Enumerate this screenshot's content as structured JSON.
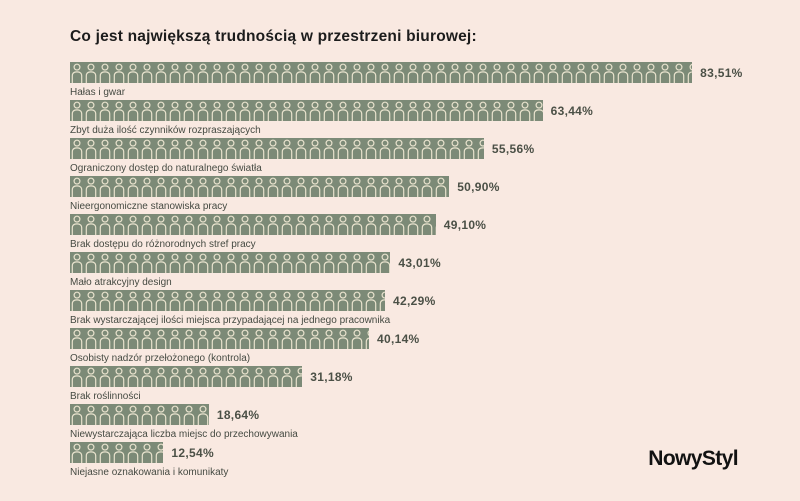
{
  "title": "Co jest największą trudnością w przestrzeni biurowej:",
  "logo_text": "NowyStyl",
  "colors": {
    "background": "#f9e9e1",
    "bar": "#7c8a77",
    "pictogram_outline": "#e8e2cd",
    "percent_text": "#4b5046",
    "category_text": "#454a42"
  },
  "icons": {
    "pictogram": "person-icon"
  },
  "chart_data": {
    "type": "bar",
    "orientation": "horizontal",
    "title": "Co jest największą trudnością w przestrzeni biurowej:",
    "xlabel": "",
    "ylabel": "",
    "xlim": [
      0,
      100
    ],
    "unit": "%",
    "grid": false,
    "legend": false,
    "categories": [
      "Hałas i gwar",
      "Zbyt duża ilość czynników rozpraszających",
      "Ograniczony dostęp do naturalnego światła",
      "Nieergonomiczne stanowiska pracy",
      "Brak dostępu do różnorodnych stref pracy",
      "Mało atrakcyjny design",
      "Brak wystarczającej ilości miejsca przypadającej na jednego pracownika",
      "Osobisty nadzór przełożonego (kontrola)",
      "Brak roślinności",
      "Niewystarczająca liczba miejsc do przechowywania",
      "Niejasne oznakowania i komunikaty"
    ],
    "values": [
      83.51,
      63.44,
      55.56,
      50.9,
      49.1,
      43.01,
      42.29,
      40.14,
      31.18,
      18.64,
      12.54
    ],
    "value_labels": [
      "83,51%",
      "63,44%",
      "55,56%",
      "50,90%",
      "49,10%",
      "43,01%",
      "42,29%",
      "40,14%",
      "31,18%",
      "18,64%",
      "12,54%"
    ]
  }
}
